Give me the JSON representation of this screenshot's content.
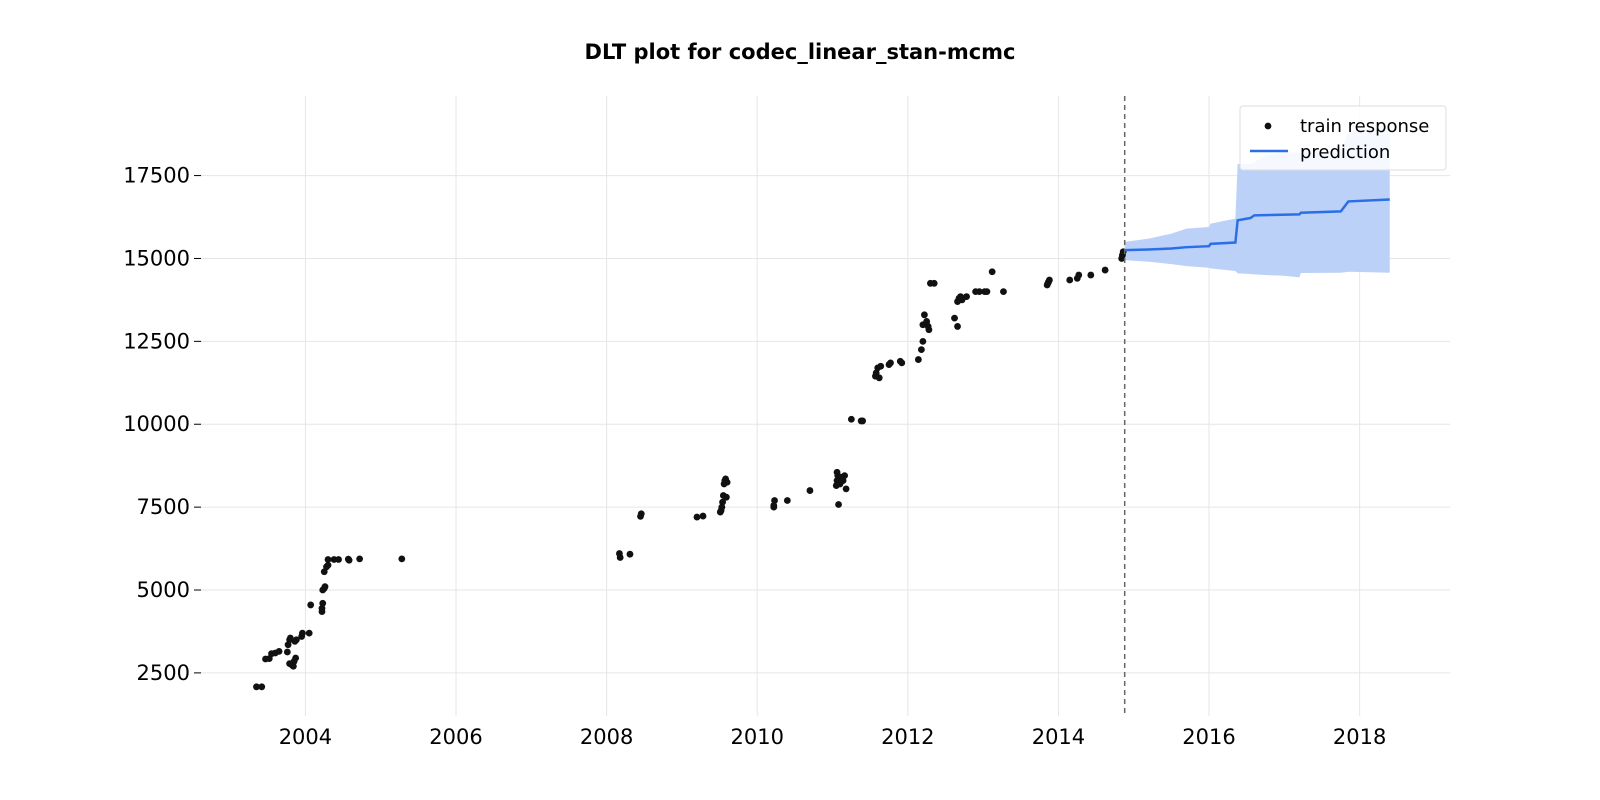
{
  "chart_data": {
    "type": "scatter",
    "title": "DLT plot for codec_linear_stan-mcmc",
    "xlabel": "",
    "ylabel": "",
    "xlim": [
      2002.6,
      2019.2
    ],
    "ylim": [
      1200,
      19900
    ],
    "x_ticks": [
      2004,
      2006,
      2008,
      2010,
      2012,
      2014,
      2016,
      2018
    ],
    "x_tick_labels": [
      "2004",
      "2006",
      "2008",
      "2010",
      "2012",
      "2014",
      "2016",
      "2018"
    ],
    "y_ticks": [
      2500,
      5000,
      7500,
      10000,
      12500,
      15000,
      17500
    ],
    "y_tick_labels": [
      "2500",
      "5000",
      "7500",
      "10000",
      "12500",
      "15000",
      "17500"
    ],
    "grid": true,
    "legend_position": "top-right",
    "train_end": 2014.88,
    "series": [
      {
        "name": "train response",
        "kind": "scatter",
        "color": "#111111",
        "points": [
          [
            2003.35,
            2080
          ],
          [
            2003.42,
            2080
          ],
          [
            2003.47,
            2920
          ],
          [
            2003.52,
            2930
          ],
          [
            2003.55,
            3080
          ],
          [
            2003.6,
            3100
          ],
          [
            2003.65,
            3150
          ],
          [
            2003.76,
            3130
          ],
          [
            2003.77,
            3350
          ],
          [
            2003.79,
            3500
          ],
          [
            2003.8,
            3550
          ],
          [
            2003.79,
            2780
          ],
          [
            2003.82,
            2740
          ],
          [
            2003.84,
            2700
          ],
          [
            2003.85,
            2850
          ],
          [
            2003.87,
            2950
          ],
          [
            2003.86,
            3450
          ],
          [
            2003.88,
            3500
          ],
          [
            2003.95,
            3600
          ],
          [
            2003.96,
            3700
          ],
          [
            2004.05,
            3700
          ],
          [
            2004.07,
            4550
          ],
          [
            2004.22,
            4350
          ],
          [
            2004.22,
            4450
          ],
          [
            2004.23,
            4600
          ],
          [
            2004.23,
            5000
          ],
          [
            2004.25,
            5050
          ],
          [
            2004.26,
            5100
          ],
          [
            2004.25,
            5550
          ],
          [
            2004.28,
            5700
          ],
          [
            2004.3,
            5750
          ],
          [
            2004.3,
            5920
          ],
          [
            2004.38,
            5920
          ],
          [
            2004.44,
            5920
          ],
          [
            2004.57,
            5930
          ],
          [
            2004.58,
            5900
          ],
          [
            2004.72,
            5940
          ],
          [
            2005.28,
            5940
          ],
          [
            2008.17,
            6100
          ],
          [
            2008.18,
            5980
          ],
          [
            2008.31,
            6080
          ],
          [
            2008.45,
            7220
          ],
          [
            2008.46,
            7300
          ],
          [
            2009.2,
            7200
          ],
          [
            2009.28,
            7230
          ],
          [
            2009.51,
            7350
          ],
          [
            2009.52,
            7400
          ],
          [
            2009.53,
            7500
          ],
          [
            2009.54,
            7650
          ],
          [
            2009.55,
            7850
          ],
          [
            2009.56,
            8200
          ],
          [
            2009.57,
            8300
          ],
          [
            2009.58,
            8350
          ],
          [
            2009.59,
            7800
          ],
          [
            2009.6,
            8250
          ],
          [
            2010.22,
            7500
          ],
          [
            2010.22,
            7550
          ],
          [
            2010.23,
            7700
          ],
          [
            2010.4,
            7700
          ],
          [
            2010.7,
            8000
          ],
          [
            2011.05,
            8150
          ],
          [
            2011.06,
            8300
          ],
          [
            2011.06,
            8550
          ],
          [
            2011.07,
            8450
          ],
          [
            2011.08,
            7580
          ],
          [
            2011.1,
            8200
          ],
          [
            2011.12,
            8400
          ],
          [
            2011.14,
            8300
          ],
          [
            2011.16,
            8450
          ],
          [
            2011.18,
            8050
          ],
          [
            2011.25,
            10150
          ],
          [
            2011.38,
            10100
          ],
          [
            2011.4,
            10100
          ],
          [
            2011.57,
            11450
          ],
          [
            2011.58,
            11550
          ],
          [
            2011.6,
            11700
          ],
          [
            2011.62,
            11400
          ],
          [
            2011.64,
            11750
          ],
          [
            2011.75,
            11800
          ],
          [
            2011.77,
            11850
          ],
          [
            2011.9,
            11900
          ],
          [
            2011.92,
            11850
          ],
          [
            2012.14,
            11950
          ],
          [
            2012.18,
            12250
          ],
          [
            2012.2,
            12500
          ],
          [
            2012.2,
            13000
          ],
          [
            2012.22,
            13300
          ],
          [
            2012.25,
            13100
          ],
          [
            2012.27,
            12950
          ],
          [
            2012.28,
            12850
          ],
          [
            2012.3,
            14250
          ],
          [
            2012.35,
            14250
          ],
          [
            2012.62,
            13200
          ],
          [
            2012.66,
            12950
          ],
          [
            2012.66,
            13700
          ],
          [
            2012.68,
            13800
          ],
          [
            2012.7,
            13850
          ],
          [
            2012.72,
            13750
          ],
          [
            2012.78,
            13850
          ],
          [
            2012.9,
            14000
          ],
          [
            2012.95,
            14000
          ],
          [
            2013.02,
            14000
          ],
          [
            2013.05,
            14000
          ],
          [
            2013.12,
            14600
          ],
          [
            2013.27,
            14000
          ],
          [
            2013.85,
            14200
          ],
          [
            2013.86,
            14250
          ],
          [
            2013.87,
            14300
          ],
          [
            2013.88,
            14350
          ],
          [
            2014.15,
            14350
          ],
          [
            2014.25,
            14400
          ],
          [
            2014.27,
            14500
          ],
          [
            2014.43,
            14500
          ],
          [
            2014.62,
            14650
          ],
          [
            2014.84,
            15000
          ],
          [
            2014.85,
            15100
          ],
          [
            2014.86,
            15200
          ]
        ]
      },
      {
        "name": "prediction",
        "kind": "line",
        "color": "#2a6fe8",
        "points": [
          [
            2014.88,
            15250
          ],
          [
            2015.2,
            15270
          ],
          [
            2015.5,
            15300
          ],
          [
            2015.7,
            15340
          ],
          [
            2016.0,
            15370
          ],
          [
            2016.02,
            15440
          ],
          [
            2016.35,
            15480
          ],
          [
            2016.38,
            16150
          ],
          [
            2016.55,
            16220
          ],
          [
            2016.6,
            16300
          ],
          [
            2017.2,
            16330
          ],
          [
            2017.22,
            16380
          ],
          [
            2017.75,
            16420
          ],
          [
            2017.85,
            16720
          ],
          [
            2018.4,
            16780
          ]
        ]
      },
      {
        "name": "prediction-interval",
        "kind": "band",
        "color": "#bcd1f7",
        "points": [
          [
            2014.88,
            14950,
            15500
          ],
          [
            2015.2,
            14900,
            15600
          ],
          [
            2015.5,
            14830,
            15750
          ],
          [
            2015.7,
            14770,
            15900
          ],
          [
            2016.0,
            14720,
            15950
          ],
          [
            2016.02,
            14700,
            16050
          ],
          [
            2016.35,
            14620,
            16200
          ],
          [
            2016.38,
            14550,
            17850
          ],
          [
            2016.55,
            14530,
            17850
          ],
          [
            2016.6,
            14520,
            17900
          ],
          [
            2016.75,
            14500,
            18100
          ],
          [
            2017.0,
            14480,
            18200
          ],
          [
            2017.2,
            14430,
            18200
          ],
          [
            2017.22,
            14560,
            18200
          ],
          [
            2017.75,
            14570,
            18250
          ],
          [
            2017.85,
            14600,
            18800
          ],
          [
            2018.0,
            14590,
            18900
          ],
          [
            2018.2,
            14580,
            18900
          ],
          [
            2018.4,
            14570,
            18950
          ]
        ]
      }
    ]
  }
}
